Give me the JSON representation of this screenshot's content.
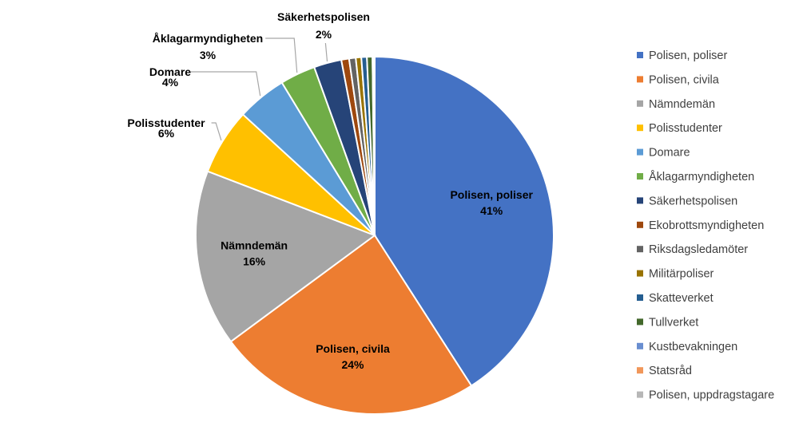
{
  "chart_data": {
    "type": "pie",
    "legend_position": "right",
    "slices": [
      {
        "name": "Polisen, poliser",
        "value": 41,
        "color": "#4472C4",
        "label": "41%"
      },
      {
        "name": "Polisen, civila",
        "value": 24,
        "color": "#ED7D31",
        "label": "24%"
      },
      {
        "name": "Nämndemän",
        "value": 16,
        "color": "#A5A5A5",
        "label": "16%"
      },
      {
        "name": "Polisstudenter",
        "value": 6,
        "color": "#FFC000",
        "label": "6%"
      },
      {
        "name": "Domare",
        "value": 4.5,
        "color": "#5B9BD5",
        "label": "4%"
      },
      {
        "name": "Åklagarmyndigheten",
        "value": 3.2,
        "color": "#70AD47",
        "label": "3%"
      },
      {
        "name": "Säkerhetspolisen",
        "value": 2.5,
        "color": "#264478",
        "label": "2%"
      },
      {
        "name": "Ekobrottsmyndigheten",
        "value": 0.7,
        "color": "#9E480E",
        "label": ""
      },
      {
        "name": "Riksdagsledamöter",
        "value": 0.6,
        "color": "#636363",
        "label": ""
      },
      {
        "name": "Militärpoliser",
        "value": 0.5,
        "color": "#997300",
        "label": ""
      },
      {
        "name": "Skatteverket",
        "value": 0.5,
        "color": "#255E91",
        "label": ""
      },
      {
        "name": "Tullverket",
        "value": 0.5,
        "color": "#43682B",
        "label": ""
      },
      {
        "name": "Kustbevakningen",
        "value": 0.1,
        "color": "#698ED0",
        "label": ""
      },
      {
        "name": "Statsråd",
        "value": 0.05,
        "color": "#F1975A",
        "label": ""
      },
      {
        "name": "Polisen, uppdragstagare",
        "value": 0.05,
        "color": "#B7B7B7",
        "label": ""
      }
    ]
  }
}
